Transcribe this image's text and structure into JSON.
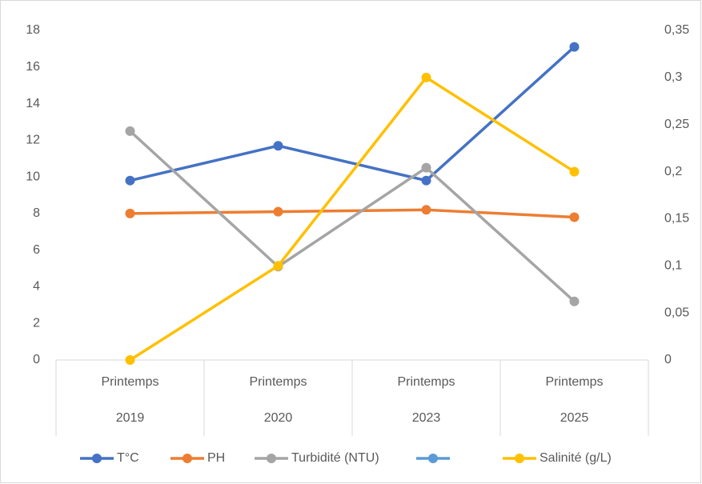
{
  "chart_data": {
    "type": "line",
    "categories": [
      [
        "Printemps",
        "2019"
      ],
      [
        "Printemps",
        "2020"
      ],
      [
        "Printemps",
        "2023"
      ],
      [
        "Printemps",
        "2025"
      ]
    ],
    "series": [
      {
        "name": "T°C",
        "color": "#4472c4",
        "values": [
          9.8,
          11.7,
          9.8,
          17.1
        ]
      },
      {
        "name": "PH",
        "color": "#ed7d31",
        "values": [
          8.0,
          8.1,
          8.2,
          7.8
        ]
      },
      {
        "name": "Turbidité (NTU)",
        "color": "#a5a5a5",
        "values": [
          12.5,
          5.1,
          10.5,
          3.2
        ]
      },
      {
        "color": "#5b9bd5",
        "values": [
          null,
          null,
          null,
          null
        ]
      },
      {
        "name": "Salinité (g/L)",
        "color": "#ffc000",
        "values": [
          0,
          0.1,
          0.3,
          0.2
        ],
        "axis": "y2"
      }
    ],
    "ylim": [
      0,
      18
    ],
    "yticks": [
      0,
      2,
      4,
      6,
      8,
      10,
      12,
      14,
      16,
      18
    ],
    "y2lim": [
      0,
      0.35
    ],
    "y2ticks": [
      0,
      {
        "value": 0.05,
        "label": "0,05"
      },
      {
        "value": 0.1,
        "label": "0,1"
      },
      {
        "value": 0.15,
        "label": "0,15"
      },
      {
        "value": 0.2,
        "label": "0,2"
      },
      {
        "value": 0.25,
        "label": "0,25"
      },
      {
        "value": 0.3,
        "label": "0,3"
      },
      {
        "value": 0.35,
        "label": "0,35"
      }
    ],
    "legend": "bottom"
  }
}
